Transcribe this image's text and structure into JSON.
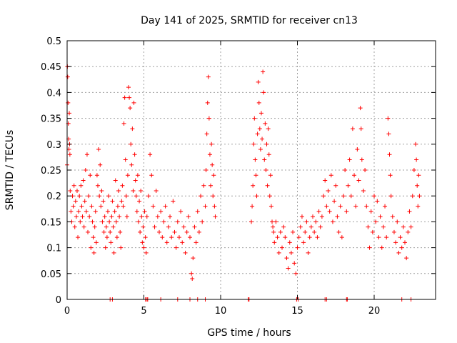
{
  "chart_data": {
    "type": "scatter",
    "title": "Day 141 of 2025, SRMTID for receiver cn13",
    "xlabel": "GPS time / hours",
    "ylabel": "SRMTID / TECUs",
    "xlim": [
      0,
      24
    ],
    "ylim": [
      0,
      0.5
    ],
    "x_ticks": [
      0,
      5,
      10,
      15,
      20
    ],
    "x_tick_labels": [
      "0",
      "5",
      "10",
      "15",
      "20"
    ],
    "y_ticks": [
      0,
      0.05,
      0.1,
      0.15,
      0.2,
      0.25,
      0.3,
      0.35,
      0.4,
      0.45,
      0.5
    ],
    "y_tick_labels": [
      "0",
      "0.05",
      "0.1",
      "0.15",
      "0.2",
      "0.25",
      "0.3",
      "0.35",
      "0.4",
      "0.45",
      "0.5"
    ],
    "grid": true,
    "marker": "+",
    "series": [
      {
        "name": "SRMTID",
        "color": "#ff0000",
        "points": [
          [
            0.0,
            0.26
          ],
          [
            0.02,
            0.45
          ],
          [
            0.04,
            0.43
          ],
          [
            0.06,
            0.38
          ],
          [
            0.08,
            0.34
          ],
          [
            0.1,
            0.31
          ],
          [
            0.12,
            0.29
          ],
          [
            0.14,
            0.36
          ],
          [
            0.16,
            0.3
          ],
          [
            0.18,
            0.28
          ],
          [
            0.2,
            0.21
          ],
          [
            0.25,
            0.17
          ],
          [
            0.3,
            0.15
          ],
          [
            0.35,
            0.2
          ],
          [
            0.4,
            0.18
          ],
          [
            0.45,
            0.22
          ],
          [
            0.5,
            0.14
          ],
          [
            0.55,
            0.19
          ],
          [
            0.6,
            0.16
          ],
          [
            0.65,
            0.21
          ],
          [
            0.7,
            0.12
          ],
          [
            0.75,
            0.17
          ],
          [
            0.8,
            0.2
          ],
          [
            0.85,
            0.15
          ],
          [
            0.9,
            0.22
          ],
          [
            0.95,
            0.18
          ],
          [
            1.0,
            0.16
          ],
          [
            1.05,
            0.23
          ],
          [
            1.1,
            0.14
          ],
          [
            1.15,
            0.19
          ],
          [
            1.2,
            0.25
          ],
          [
            1.25,
            0.17
          ],
          [
            1.3,
            0.28
          ],
          [
            1.35,
            0.13
          ],
          [
            1.4,
            0.2
          ],
          [
            1.45,
            0.16
          ],
          [
            1.5,
            0.24
          ],
          [
            1.55,
            0.1
          ],
          [
            1.6,
            0.18
          ],
          [
            1.65,
            0.15
          ],
          [
            1.7,
            0.12
          ],
          [
            1.75,
            0.09
          ],
          [
            1.8,
            0.14
          ],
          [
            1.85,
            0.17
          ],
          [
            1.9,
            0.11
          ],
          [
            1.95,
            0.24
          ],
          [
            2.0,
            0.22
          ],
          [
            2.05,
            0.29
          ],
          [
            2.1,
            0.2
          ],
          [
            2.15,
            0.26
          ],
          [
            2.2,
            0.18
          ],
          [
            2.25,
            0.21
          ],
          [
            2.3,
            0.15
          ],
          [
            2.35,
            0.19
          ],
          [
            2.4,
            0.13
          ],
          [
            2.45,
            0.16
          ],
          [
            2.5,
            0.1
          ],
          [
            2.55,
            0.14
          ],
          [
            2.6,
            0.12
          ],
          [
            2.65,
            0.17
          ],
          [
            2.7,
            0.2
          ],
          [
            2.75,
            0.15
          ],
          [
            2.8,
            0.13
          ],
          [
            2.85,
            0.11
          ],
          [
            2.9,
            0.16
          ],
          [
            2.95,
            0.19
          ],
          [
            3.0,
            0.14
          ],
          [
            3.05,
            0.09
          ],
          [
            3.1,
            0.17
          ],
          [
            3.15,
            0.23
          ],
          [
            3.2,
            0.15
          ],
          [
            3.25,
            0.12
          ],
          [
            3.3,
            0.18
          ],
          [
            3.35,
            0.21
          ],
          [
            3.4,
            0.16
          ],
          [
            3.45,
            0.13
          ],
          [
            3.5,
            0.1
          ],
          [
            3.55,
            0.19
          ],
          [
            3.6,
            0.22
          ],
          [
            3.65,
            0.18
          ],
          [
            3.7,
            0.34
          ],
          [
            3.75,
            0.39
          ],
          [
            3.8,
            0.27
          ],
          [
            3.85,
            0.2
          ],
          [
            3.9,
            0.16
          ],
          [
            3.95,
            0.24
          ],
          [
            4.0,
            0.41
          ],
          [
            4.05,
            0.39
          ],
          [
            4.1,
            0.37
          ],
          [
            4.15,
            0.3
          ],
          [
            4.2,
            0.26
          ],
          [
            4.25,
            0.33
          ],
          [
            4.3,
            0.21
          ],
          [
            4.35,
            0.38
          ],
          [
            4.4,
            0.28
          ],
          [
            4.45,
            0.23
          ],
          [
            4.5,
            0.2
          ],
          [
            4.55,
            0.17
          ],
          [
            4.6,
            0.24
          ],
          [
            4.65,
            0.15
          ],
          [
            4.7,
            0.19
          ],
          [
            4.75,
            0.13
          ],
          [
            4.8,
            0.21
          ],
          [
            4.85,
            0.16
          ],
          [
            4.9,
            0.11
          ],
          [
            4.95,
            0.14
          ],
          [
            5.0,
            0.1
          ],
          [
            5.05,
            0.17
          ],
          [
            5.1,
            0.12
          ],
          [
            5.15,
            0.09
          ],
          [
            5.2,
            0.16
          ],
          [
            5.3,
            0.2
          ],
          [
            5.4,
            0.28
          ],
          [
            5.5,
            0.24
          ],
          [
            5.6,
            0.18
          ],
          [
            5.7,
            0.14
          ],
          [
            5.8,
            0.21
          ],
          [
            5.9,
            0.16
          ],
          [
            6.0,
            0.13
          ],
          [
            6.1,
            0.17
          ],
          [
            6.2,
            0.12
          ],
          [
            6.3,
            0.15
          ],
          [
            6.4,
            0.18
          ],
          [
            6.5,
            0.11
          ],
          [
            6.6,
            0.14
          ],
          [
            6.7,
            0.16
          ],
          [
            6.8,
            0.12
          ],
          [
            6.9,
            0.19
          ],
          [
            7.0,
            0.13
          ],
          [
            7.1,
            0.1
          ],
          [
            7.2,
            0.15
          ],
          [
            7.3,
            0.12
          ],
          [
            7.4,
            0.17
          ],
          [
            7.5,
            0.11
          ],
          [
            7.6,
            0.14
          ],
          [
            7.7,
            0.09
          ],
          [
            7.8,
            0.13
          ],
          [
            7.9,
            0.16
          ],
          [
            8.0,
            0.12
          ],
          [
            8.1,
            0.05
          ],
          [
            8.15,
            0.04
          ],
          [
            8.2,
            0.08
          ],
          [
            8.3,
            0.14
          ],
          [
            8.4,
            0.11
          ],
          [
            8.5,
            0.17
          ],
          [
            8.6,
            0.13
          ],
          [
            8.7,
            0.2
          ],
          [
            8.8,
            0.15
          ],
          [
            8.9,
            0.22
          ],
          [
            9.0,
            0.18
          ],
          [
            9.05,
            0.25
          ],
          [
            9.1,
            0.32
          ],
          [
            9.15,
            0.38
          ],
          [
            9.2,
            0.43
          ],
          [
            9.25,
            0.35
          ],
          [
            9.3,
            0.28
          ],
          [
            9.35,
            0.22
          ],
          [
            9.4,
            0.3
          ],
          [
            9.45,
            0.26
          ],
          [
            9.5,
            0.2
          ],
          [
            9.55,
            0.24
          ],
          [
            9.6,
            0.18
          ],
          [
            9.65,
            0.16
          ],
          [
            12.0,
            0.15
          ],
          [
            12.05,
            0.18
          ],
          [
            12.1,
            0.22
          ],
          [
            12.15,
            0.3
          ],
          [
            12.2,
            0.35
          ],
          [
            12.25,
            0.27
          ],
          [
            12.3,
            0.24
          ],
          [
            12.35,
            0.2
          ],
          [
            12.4,
            0.32
          ],
          [
            12.45,
            0.42
          ],
          [
            12.5,
            0.38
          ],
          [
            12.55,
            0.33
          ],
          [
            12.6,
            0.29
          ],
          [
            12.65,
            0.36
          ],
          [
            12.7,
            0.31
          ],
          [
            12.75,
            0.44
          ],
          [
            12.8,
            0.4
          ],
          [
            12.85,
            0.27
          ],
          [
            12.9,
            0.34
          ],
          [
            12.95,
            0.25
          ],
          [
            13.0,
            0.3
          ],
          [
            13.05,
            0.22
          ],
          [
            13.1,
            0.33
          ],
          [
            13.15,
            0.28
          ],
          [
            13.2,
            0.2
          ],
          [
            13.25,
            0.24
          ],
          [
            13.3,
            0.18
          ],
          [
            13.35,
            0.15
          ],
          [
            13.4,
            0.14
          ],
          [
            13.45,
            0.13
          ],
          [
            13.5,
            0.11
          ],
          [
            13.6,
            0.15
          ],
          [
            13.7,
            0.12
          ],
          [
            13.8,
            0.09
          ],
          [
            13.9,
            0.13
          ],
          [
            14.0,
            0.1
          ],
          [
            14.1,
            0.14
          ],
          [
            14.2,
            0.12
          ],
          [
            14.3,
            0.08
          ],
          [
            14.4,
            0.06
          ],
          [
            14.5,
            0.11
          ],
          [
            14.6,
            0.09
          ],
          [
            14.7,
            0.13
          ],
          [
            14.8,
            0.07
          ],
          [
            14.9,
            0.05
          ],
          [
            15.0,
            0.1
          ],
          [
            15.1,
            0.12
          ],
          [
            15.2,
            0.14
          ],
          [
            15.3,
            0.16
          ],
          [
            15.4,
            0.11
          ],
          [
            15.5,
            0.13
          ],
          [
            15.6,
            0.15
          ],
          [
            15.7,
            0.09
          ],
          [
            15.8,
            0.12
          ],
          [
            15.9,
            0.14
          ],
          [
            16.0,
            0.16
          ],
          [
            16.1,
            0.13
          ],
          [
            16.2,
            0.15
          ],
          [
            16.3,
            0.12
          ],
          [
            16.4,
            0.17
          ],
          [
            16.5,
            0.14
          ],
          [
            16.6,
            0.16
          ],
          [
            16.7,
            0.2
          ],
          [
            16.8,
            0.23
          ],
          [
            16.9,
            0.18
          ],
          [
            17.0,
            0.21
          ],
          [
            17.1,
            0.17
          ],
          [
            17.2,
            0.24
          ],
          [
            17.3,
            0.15
          ],
          [
            17.4,
            0.19
          ],
          [
            17.5,
            0.22
          ],
          [
            17.6,
            0.16
          ],
          [
            17.7,
            0.13
          ],
          [
            17.8,
            0.18
          ],
          [
            17.9,
            0.12
          ],
          [
            18.0,
            0.2
          ],
          [
            18.1,
            0.25
          ],
          [
            18.2,
            0.17
          ],
          [
            18.3,
            0.22
          ],
          [
            18.4,
            0.27
          ],
          [
            18.5,
            0.2
          ],
          [
            18.6,
            0.33
          ],
          [
            18.7,
            0.24
          ],
          [
            18.8,
            0.18
          ],
          [
            18.9,
            0.29
          ],
          [
            19.0,
            0.23
          ],
          [
            19.1,
            0.37
          ],
          [
            19.15,
            0.33
          ],
          [
            19.2,
            0.27
          ],
          [
            19.3,
            0.21
          ],
          [
            19.4,
            0.25
          ],
          [
            19.5,
            0.18
          ],
          [
            19.6,
            0.14
          ],
          [
            19.7,
            0.1
          ],
          [
            19.8,
            0.17
          ],
          [
            19.9,
            0.13
          ],
          [
            20.0,
            0.2
          ],
          [
            20.1,
            0.15
          ],
          [
            20.2,
            0.19
          ],
          [
            20.3,
            0.12
          ],
          [
            20.4,
            0.16
          ],
          [
            20.5,
            0.1
          ],
          [
            20.6,
            0.14
          ],
          [
            20.7,
            0.18
          ],
          [
            20.8,
            0.12
          ],
          [
            20.9,
            0.35
          ],
          [
            20.95,
            0.32
          ],
          [
            21.0,
            0.28
          ],
          [
            21.05,
            0.24
          ],
          [
            21.1,
            0.2
          ],
          [
            21.2,
            0.16
          ],
          [
            21.3,
            0.13
          ],
          [
            21.4,
            0.11
          ],
          [
            21.5,
            0.15
          ],
          [
            21.6,
            0.09
          ],
          [
            21.7,
            0.12
          ],
          [
            21.8,
            0.1
          ],
          [
            21.9,
            0.14
          ],
          [
            22.0,
            0.11
          ],
          [
            22.1,
            0.08
          ],
          [
            22.2,
            0.13
          ],
          [
            22.3,
            0.17
          ],
          [
            22.4,
            0.14
          ],
          [
            22.5,
            0.2
          ],
          [
            22.6,
            0.25
          ],
          [
            22.7,
            0.3
          ],
          [
            22.75,
            0.27
          ],
          [
            22.8,
            0.22
          ],
          [
            22.85,
            0.18
          ],
          [
            22.9,
            0.24
          ],
          [
            22.95,
            0.2
          ],
          [
            2.8,
            0.0
          ],
          [
            2.95,
            0.0
          ],
          [
            5.1,
            0.0
          ],
          [
            5.2,
            0.0
          ],
          [
            5.25,
            0.0
          ],
          [
            6.1,
            0.0
          ],
          [
            7.2,
            0.0
          ],
          [
            8.0,
            0.0
          ],
          [
            8.5,
            0.0
          ],
          [
            9.0,
            0.0
          ],
          [
            11.8,
            0.0
          ],
          [
            11.85,
            0.0
          ],
          [
            14.95,
            0.0
          ],
          [
            15.05,
            0.0
          ],
          [
            16.8,
            0.0
          ],
          [
            16.9,
            0.0
          ],
          [
            18.2,
            0.0
          ],
          [
            18.25,
            0.0
          ],
          [
            21.8,
            0.0
          ],
          [
            22.4,
            0.0
          ]
        ]
      }
    ]
  }
}
